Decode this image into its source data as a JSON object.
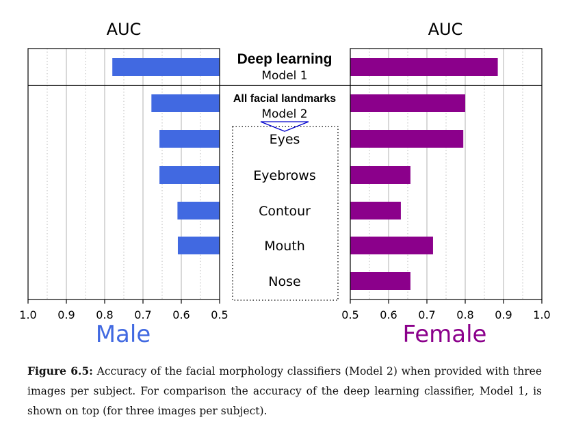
{
  "chart_data": {
    "type": "bar",
    "left_axis_title": "AUC",
    "right_axis_title": "AUC",
    "left_sex_label": "Male",
    "right_sex_label": "Female",
    "left_ticks": [
      "1.0",
      "0.9",
      "0.8",
      "0.7",
      "0.6",
      "0.5"
    ],
    "right_ticks": [
      "0.5",
      "0.6",
      "0.7",
      "0.8",
      "0.9",
      "1.0"
    ],
    "xlim": [
      0.5,
      1.0
    ],
    "grid": true,
    "colors": {
      "male": "#4169e1",
      "female": "#8b008b",
      "group_box": "#0000cc"
    },
    "categories": [
      {
        "label": "Deep learning",
        "sublabel": "Model 1",
        "bold": true,
        "male": 0.78,
        "female": 0.885
      },
      {
        "label": "All facial landmarks",
        "sublabel": "Model 2",
        "bold": true,
        "male": 0.678,
        "female": 0.8
      },
      {
        "label": "Eyes",
        "sublabel": "",
        "bold": false,
        "male": 0.657,
        "female": 0.795
      },
      {
        "label": "Eyebrows",
        "sublabel": "",
        "bold": false,
        "male": 0.657,
        "female": 0.657
      },
      {
        "label": "Contour",
        "sublabel": "",
        "bold": false,
        "male": 0.61,
        "female": 0.632
      },
      {
        "label": "Mouth",
        "sublabel": "",
        "bold": false,
        "male": 0.609,
        "female": 0.716
      },
      {
        "label": "Nose",
        "sublabel": "",
        "bold": false,
        "male": 0.5,
        "female": 0.657
      }
    ]
  },
  "caption": {
    "label": "Figure 6.5:",
    "text": "Accuracy of the facial morphology classifiers (Model 2) when provided with three images per subject. For comparison the accuracy of the deep learning classifier, Model 1, is shown on top (for three images per subject)."
  }
}
